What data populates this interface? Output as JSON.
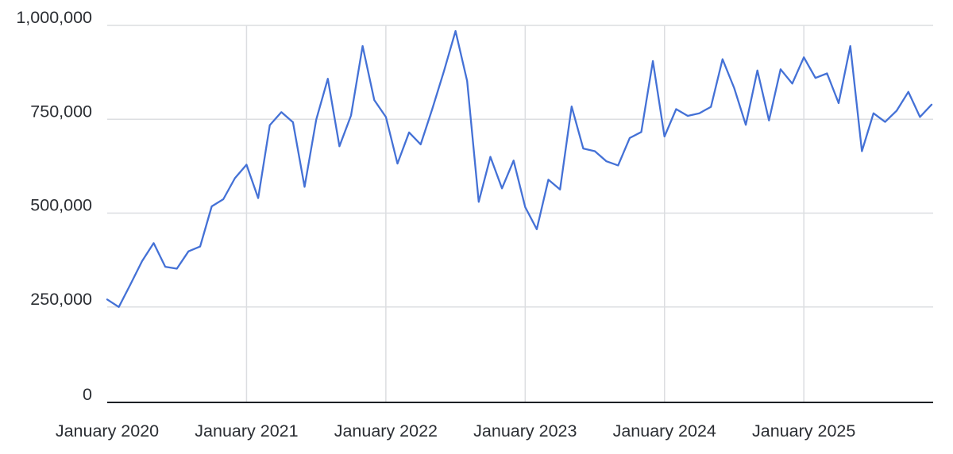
{
  "chart_data": {
    "type": "line",
    "title": "",
    "xlabel": "",
    "ylabel": "",
    "ylim": [
      0,
      1000000
    ],
    "grid": true,
    "legend": "none",
    "line_color": "#4471d6",
    "grid_color": "#dcdee1",
    "axis_line_color": "#1d2025",
    "tick_label_color": "#2b2e33",
    "y_ticks": [
      0,
      250000,
      500000,
      750000,
      1000000
    ],
    "y_tick_labels": [
      "0",
      "250,000",
      "500,000",
      "750,000",
      "1,000,000"
    ],
    "x_tick_labels": [
      "January 2020",
      "January 2021",
      "January 2022",
      "January 2023",
      "January 2024",
      "January 2025"
    ],
    "x_tick_month_indices": [
      0,
      12,
      24,
      36,
      48,
      60
    ],
    "x_gridline_month_indices": [
      12,
      24,
      36,
      48,
      60
    ],
    "x": [
      "Jan 2020",
      "Feb 2020",
      "Mar 2020",
      "Apr 2020",
      "May 2020",
      "Jun 2020",
      "Jul 2020",
      "Aug 2020",
      "Sep 2020",
      "Oct 2020",
      "Nov 2020",
      "Dec 2020",
      "Jan 2021",
      "Feb 2021",
      "Mar 2021",
      "Apr 2021",
      "May 2021",
      "Jun 2021",
      "Jul 2021",
      "Aug 2021",
      "Sep 2021",
      "Oct 2021",
      "Nov 2021",
      "Dec 2021",
      "Jan 2022",
      "Feb 2022",
      "Mar 2022",
      "Apr 2022",
      "May 2022",
      "Jun 2022",
      "Jul 2022",
      "Aug 2022",
      "Sep 2022",
      "Oct 2022",
      "Nov 2022",
      "Dec 2022",
      "Jan 2023",
      "Feb 2023",
      "Mar 2023",
      "Apr 2023",
      "May 2023",
      "Jun 2023",
      "Jul 2023",
      "Aug 2023",
      "Sep 2023",
      "Oct 2023",
      "Nov 2023",
      "Dec 2023",
      "Jan 2024",
      "Feb 2024",
      "Mar 2024",
      "Apr 2024",
      "May 2024",
      "Jun 2024",
      "Jul 2024",
      "Aug 2024",
      "Sep 2024",
      "Oct 2024",
      "Nov 2024",
      "Dec 2024",
      "Jan 2025",
      "Feb 2025",
      "Mar 2025",
      "Apr 2025",
      "May 2025",
      "Jun 2025",
      "Jul 2025",
      "Aug 2025",
      "Sep 2025",
      "Oct 2025",
      "Nov 2025",
      "Dec 2025"
    ],
    "series": [
      {
        "name": "monthly-value",
        "values": [
          270000,
          250000,
          310000,
          372000,
          420000,
          357000,
          352000,
          398000,
          411000,
          518000,
          537000,
          593000,
          629000,
          540000,
          734000,
          769000,
          742000,
          570000,
          749000,
          858000,
          678000,
          760000,
          945000,
          801000,
          756000,
          632000,
          715000,
          683000,
          778000,
          878000,
          985000,
          852000,
          530000,
          650000,
          566000,
          640000,
          516000,
          457000,
          589000,
          563000,
          784000,
          672000,
          665000,
          638000,
          627000,
          700000,
          716000,
          905000,
          704000,
          777000,
          759000,
          766000,
          783000,
          910000,
          833000,
          735000,
          880000,
          747000,
          883000,
          845000,
          915000,
          860000,
          872000,
          793000,
          945000,
          665000,
          766000,
          743000,
          773000,
          823000,
          756000,
          789000
        ]
      }
    ]
  }
}
